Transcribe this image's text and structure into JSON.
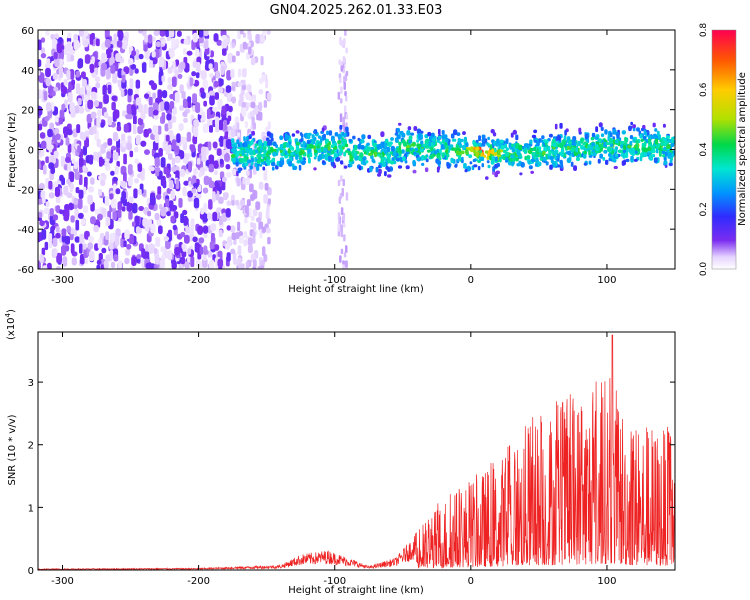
{
  "title": "GN04.2025.262.01.33.E03",
  "chart_data": [
    {
      "type": "heatmap",
      "title": "GN04.2025.262.01.33.E03",
      "xlabel": "Height of straight line (km)",
      "ylabel": "Frequency (Hz)",
      "xlim": [
        -318,
        150
      ],
      "ylim": [
        -60,
        60
      ],
      "x_ticks": [
        -300,
        -200,
        -100,
        0,
        100
      ],
      "x_tick_labels": [
        "-300",
        "-200",
        "-100",
        "0",
        "100"
      ],
      "y_ticks": [
        -60,
        -40,
        -20,
        0,
        20,
        40,
        60
      ],
      "y_tick_labels": [
        "-60",
        "-40",
        "-20",
        "0",
        "20",
        "40",
        "60"
      ],
      "colorbar": {
        "label": "Normalized spectral amplitude",
        "range": [
          0.0,
          0.8
        ],
        "ticks": [
          0.0,
          0.2,
          0.4,
          0.6,
          0.8
        ],
        "tick_labels": [
          "0.0",
          "0.2",
          "0.4",
          "0.6",
          "0.8"
        ]
      },
      "regions": [
        {
          "name": "broadband noise",
          "x_range": [
            -318,
            -175
          ],
          "freq_range": [
            -60,
            60
          ],
          "amplitude": 0.1
        },
        {
          "name": "noise fringe",
          "x_range": [
            -175,
            -148
          ],
          "freq_range": [
            -60,
            60
          ],
          "amplitude": 0.04
        },
        {
          "name": "signal band",
          "x_range": [
            -175,
            150
          ],
          "center_freq": 0,
          "half_width": 10,
          "peak_amplitude": 0.8,
          "peak_x": 8
        }
      ]
    },
    {
      "type": "line",
      "xlabel": "Height of straight line (km)",
      "ylabel": "SNR (10 * v/v)",
      "y_multiplier": "(x10",
      "y_multiplier_exp": "4",
      "y_multiplier_close": ")",
      "xlim": [
        -318,
        150
      ],
      "ylim": [
        0,
        3.8
      ],
      "x_ticks": [
        -300,
        -200,
        -100,
        0,
        100
      ],
      "x_tick_labels": [
        "-300",
        "-200",
        "-100",
        "0",
        "100"
      ],
      "y_ticks": [
        0,
        1,
        2,
        3
      ],
      "y_tick_labels": [
        "0",
        "1",
        "2",
        "3"
      ],
      "series_color": "#ee2222",
      "envelope": [
        {
          "x": -318,
          "y": 0.02
        },
        {
          "x": -200,
          "y": 0.03
        },
        {
          "x": -140,
          "y": 0.08
        },
        {
          "x": -125,
          "y": 0.25
        },
        {
          "x": -105,
          "y": 0.32
        },
        {
          "x": -90,
          "y": 0.2
        },
        {
          "x": -75,
          "y": 0.06
        },
        {
          "x": -55,
          "y": 0.2
        },
        {
          "x": -40,
          "y": 0.6
        },
        {
          "x": -20,
          "y": 1.2
        },
        {
          "x": 0,
          "y": 1.5
        },
        {
          "x": 20,
          "y": 1.8
        },
        {
          "x": 40,
          "y": 2.4
        },
        {
          "x": 60,
          "y": 2.7
        },
        {
          "x": 80,
          "y": 2.9
        },
        {
          "x": 100,
          "y": 3.2
        },
        {
          "x": 120,
          "y": 2.5
        },
        {
          "x": 150,
          "y": 2.3
        }
      ],
      "peak": {
        "x": 104,
        "y": 3.75
      }
    }
  ]
}
